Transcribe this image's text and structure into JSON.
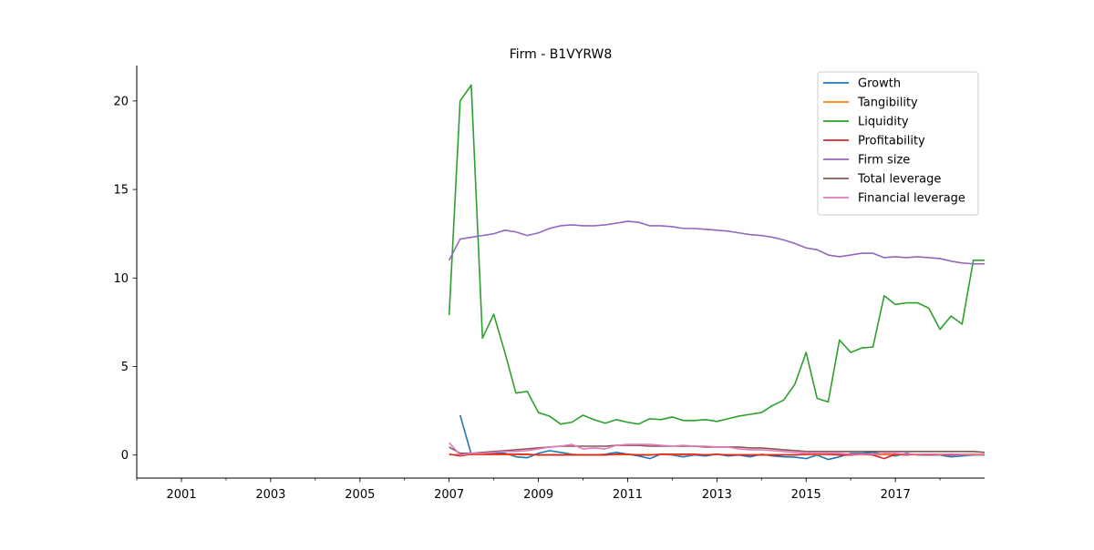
{
  "chart_data": {
    "type": "line",
    "title": "Firm - B1VYRW8",
    "xlabel": "",
    "ylabel": "",
    "xlim": [
      "2000-01-01",
      "2019-01-01"
    ],
    "ylim": [
      -1.3,
      22.0
    ],
    "grid": false,
    "legend_position": "top-right",
    "xticks": [
      {
        "date": "2001-01-01",
        "label": "2001"
      },
      {
        "date": "2003-01-01",
        "label": "2003"
      },
      {
        "date": "2005-01-01",
        "label": "2005"
      },
      {
        "date": "2007-01-01",
        "label": "2007"
      },
      {
        "date": "2009-01-01",
        "label": "2009"
      },
      {
        "date": "2011-01-01",
        "label": "2011"
      },
      {
        "date": "2013-01-01",
        "label": "2013"
      },
      {
        "date": "2015-01-01",
        "label": "2015"
      },
      {
        "date": "2017-01-01",
        "label": "2017"
      }
    ],
    "yticks": [
      0,
      5,
      10,
      15,
      20
    ],
    "x": [
      "2007-01-01",
      "2007-04-01",
      "2007-07-01",
      "2007-10-01",
      "2008-01-01",
      "2008-04-01",
      "2008-07-01",
      "2008-10-01",
      "2009-01-01",
      "2009-04-01",
      "2009-07-01",
      "2009-10-01",
      "2010-01-01",
      "2010-04-01",
      "2010-07-01",
      "2010-10-01",
      "2011-01-01",
      "2011-04-01",
      "2011-07-01",
      "2011-10-01",
      "2012-01-01",
      "2012-04-01",
      "2012-07-01",
      "2012-10-01",
      "2013-01-01",
      "2013-04-01",
      "2013-07-01",
      "2013-10-01",
      "2014-01-01",
      "2014-04-01",
      "2014-07-01",
      "2014-10-01",
      "2015-01-01",
      "2015-04-01",
      "2015-07-01",
      "2015-10-01",
      "2016-01-01",
      "2016-04-01",
      "2016-07-01",
      "2016-10-01",
      "2017-01-01",
      "2017-04-01",
      "2017-07-01",
      "2017-10-01",
      "2018-01-01",
      "2018-04-01",
      "2018-07-01",
      "2018-10-01",
      "2019-01-01"
    ],
    "series": [
      {
        "name": "Growth",
        "color": "#1f77b4",
        "values": [
          null,
          2.25,
          0.05,
          0.1,
          0.12,
          0.1,
          -0.1,
          -0.15,
          0.1,
          0.25,
          0.15,
          0.05,
          0.0,
          0.0,
          0.05,
          0.15,
          0.05,
          -0.05,
          -0.2,
          0.05,
          0.0,
          -0.1,
          0.0,
          -0.05,
          0.05,
          -0.05,
          0.0,
          -0.1,
          0.05,
          -0.05,
          -0.1,
          -0.12,
          -0.2,
          0.0,
          -0.25,
          -0.1,
          0.1,
          0.1,
          0.15,
          0.05,
          -0.05,
          0.1,
          0.0,
          0.0,
          0.0,
          -0.1,
          -0.05,
          0.0,
          0.0
        ]
      },
      {
        "name": "Tangibility",
        "color": "#ff7f0e",
        "values": [
          0.02,
          0.02,
          0.02,
          0.02,
          0.02,
          0.02,
          0.02,
          0.02,
          0.02,
          0.02,
          0.02,
          0.02,
          0.02,
          0.02,
          0.02,
          0.02,
          0.02,
          0.02,
          0.02,
          0.02,
          0.02,
          0.02,
          0.02,
          0.02,
          0.02,
          0.02,
          0.02,
          0.02,
          0.02,
          0.02,
          0.02,
          0.02,
          0.02,
          0.02,
          0.02,
          0.02,
          0.02,
          0.02,
          0.02,
          0.02,
          0.02,
          0.02,
          0.02,
          0.02,
          0.02,
          0.02,
          0.02,
          0.02,
          0.02
        ]
      },
      {
        "name": "Liquidity",
        "color": "#2ca02c",
        "values": [
          7.9,
          20.0,
          20.9,
          6.6,
          7.95,
          5.8,
          3.5,
          3.6,
          2.4,
          2.2,
          1.75,
          1.85,
          2.25,
          2.0,
          1.8,
          2.0,
          1.85,
          1.75,
          2.05,
          2.0,
          2.15,
          1.95,
          1.95,
          2.0,
          1.9,
          2.05,
          2.2,
          2.3,
          2.4,
          2.8,
          3.1,
          4.0,
          5.8,
          3.2,
          3.0,
          6.5,
          5.8,
          6.05,
          6.1,
          9.0,
          8.5,
          8.6,
          8.6,
          8.3,
          7.1,
          7.85,
          7.4,
          11.0,
          11.0
        ]
      },
      {
        "name": "Profitability",
        "color": "#d62728",
        "values": [
          0.05,
          -0.05,
          0.05,
          0.05,
          0.05,
          0.05,
          0.05,
          0.05,
          0.0,
          0.0,
          0.0,
          0.0,
          0.0,
          0.0,
          0.0,
          0.05,
          0.05,
          0.0,
          0.0,
          0.05,
          0.05,
          0.05,
          0.05,
          0.0,
          0.05,
          0.0,
          0.0,
          0.0,
          0.0,
          0.0,
          0.0,
          0.0,
          0.05,
          0.05,
          0.05,
          0.0,
          0.0,
          0.05,
          0.0,
          -0.2,
          0.05,
          0.0,
          0.05,
          0.0,
          0.05,
          0.0,
          0.05,
          0.05,
          0.05
        ]
      },
      {
        "name": "Firm size",
        "color": "#9467bd",
        "values": [
          11.0,
          12.2,
          12.3,
          12.4,
          12.5,
          12.7,
          12.6,
          12.4,
          12.55,
          12.8,
          12.95,
          13.0,
          12.95,
          12.95,
          13.0,
          13.1,
          13.2,
          13.15,
          12.95,
          12.95,
          12.9,
          12.8,
          12.8,
          12.75,
          12.7,
          12.65,
          12.55,
          12.45,
          12.4,
          12.3,
          12.15,
          11.95,
          11.7,
          11.6,
          11.3,
          11.2,
          11.3,
          11.4,
          11.4,
          11.15,
          11.2,
          11.15,
          11.2,
          11.15,
          11.1,
          10.95,
          10.85,
          10.8,
          10.8
        ]
      },
      {
        "name": "Total leverage",
        "color": "#8c564b",
        "values": [
          0.45,
          0.1,
          0.1,
          0.15,
          0.2,
          0.25,
          0.3,
          0.35,
          0.4,
          0.45,
          0.5,
          0.5,
          0.5,
          0.5,
          0.5,
          0.55,
          0.55,
          0.55,
          0.5,
          0.5,
          0.5,
          0.5,
          0.5,
          0.45,
          0.45,
          0.45,
          0.45,
          0.4,
          0.4,
          0.35,
          0.3,
          0.25,
          0.2,
          0.2,
          0.2,
          0.2,
          0.2,
          0.2,
          0.2,
          0.2,
          0.2,
          0.2,
          0.2,
          0.2,
          0.2,
          0.2,
          0.2,
          0.2,
          0.15
        ]
      },
      {
        "name": "Financial leverage",
        "color": "#e377c2",
        "values": [
          0.7,
          0.0,
          0.1,
          0.1,
          0.15,
          0.2,
          0.2,
          0.25,
          0.35,
          0.45,
          0.5,
          0.6,
          0.35,
          0.4,
          0.35,
          0.55,
          0.6,
          0.6,
          0.6,
          0.55,
          0.5,
          0.55,
          0.5,
          0.5,
          0.45,
          0.45,
          0.35,
          0.3,
          0.3,
          0.25,
          0.2,
          0.15,
          0.1,
          0.1,
          0.1,
          0.1,
          0.05,
          0.05,
          0.05,
          0.1,
          0.1,
          0.05,
          0.05,
          0.05,
          0.05,
          0.05,
          0.05,
          0.05,
          0.05
        ]
      }
    ]
  }
}
